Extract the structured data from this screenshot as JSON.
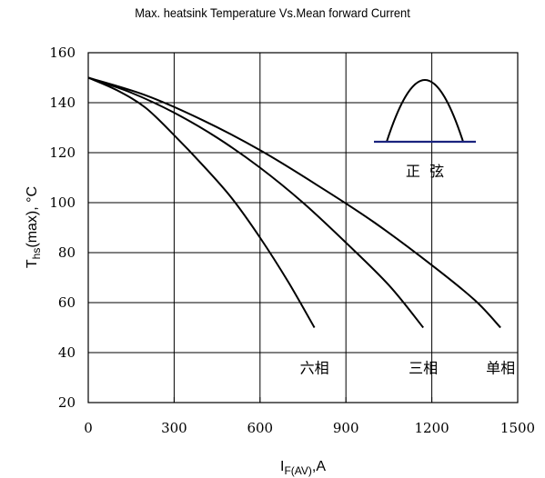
{
  "chart_data": {
    "type": "line",
    "title": "Max. heatsink Temperature Vs.Mean forward Current",
    "xlabel": {
      "main": "I",
      "sub": "F(AV)",
      "suffix": ",A"
    },
    "ylabel": {
      "main": "T",
      "sub": "hs",
      "suffix": "(max), °C"
    },
    "xlim": [
      0,
      1500
    ],
    "ylim": [
      20,
      160
    ],
    "xticks": [
      "0",
      "300",
      "600",
      "900",
      "1200",
      "1500"
    ],
    "yticks": [
      "20",
      "40",
      "60",
      "80",
      "100",
      "120",
      "140",
      "160"
    ],
    "grid": true,
    "series": [
      {
        "name": "六相",
        "points": [
          [
            0,
            150
          ],
          [
            100,
            145
          ],
          [
            200,
            138
          ],
          [
            300,
            127
          ],
          [
            400,
            115
          ],
          [
            500,
            102
          ],
          [
            600,
            86
          ],
          [
            700,
            68
          ],
          [
            790,
            50
          ]
        ]
      },
      {
        "name": "三相",
        "points": [
          [
            0,
            150
          ],
          [
            150,
            144
          ],
          [
            300,
            136
          ],
          [
            450,
            126
          ],
          [
            600,
            114
          ],
          [
            750,
            100
          ],
          [
            900,
            84
          ],
          [
            1050,
            67
          ],
          [
            1170,
            50
          ]
        ]
      },
      {
        "name": "单相",
        "points": [
          [
            0,
            150
          ],
          [
            200,
            143
          ],
          [
            400,
            133
          ],
          [
            600,
            121
          ],
          [
            800,
            107
          ],
          [
            1000,
            92
          ],
          [
            1200,
            75
          ],
          [
            1350,
            61
          ],
          [
            1440,
            50
          ]
        ]
      }
    ],
    "inset": {
      "label": "正  弦",
      "waveform": "sine-half-wave",
      "baseline_color": "#1a237e"
    },
    "colors": {
      "lines": "#000000",
      "grid": "#000000",
      "inset_baseline": "#1a237e"
    }
  }
}
